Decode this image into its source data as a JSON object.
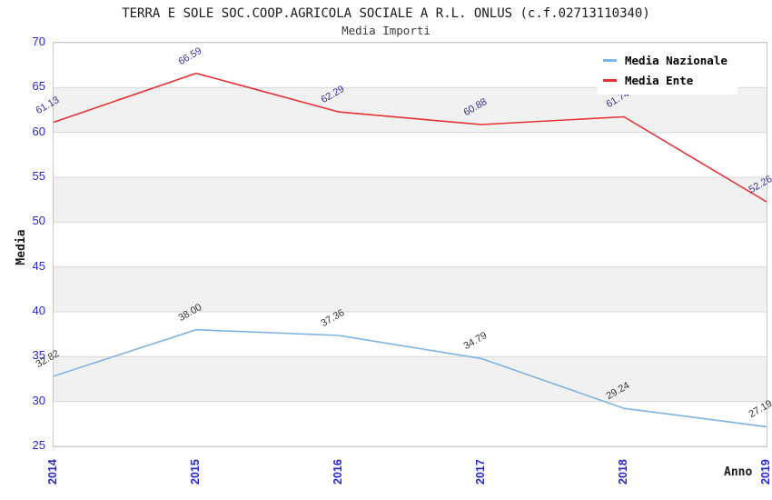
{
  "chart_data": {
    "type": "line",
    "title": "TERRA E SOLE SOC.COOP.AGRICOLA SOCIALE A R.L. ONLUS (c.f.02713110340)",
    "subtitle": "Media Importi",
    "xlabel": "Anno",
    "ylabel": "Media",
    "categories": [
      "2014",
      "2015",
      "2016",
      "2017",
      "2018",
      "2019"
    ],
    "series": [
      {
        "name": "Media Nazionale",
        "values": [
          32.82,
          38.0,
          37.36,
          34.79,
          29.24,
          27.19
        ],
        "color": "#7db3e3",
        "label_color": "#373737"
      },
      {
        "name": "Media Ente",
        "values": [
          61.13,
          66.59,
          62.29,
          60.88,
          61.74,
          52.26
        ],
        "color": "#e63232",
        "label_color": "#34349c"
      }
    ],
    "ylim": [
      25,
      70
    ],
    "y_ticks": [
      70,
      65,
      60,
      55,
      50,
      45,
      40,
      35,
      30,
      25
    ],
    "grid": true,
    "legend_position": "top-right",
    "band_color": "#f1f1f1",
    "grid_color": "#d8d8d8",
    "border_color": "#c8c8c8",
    "axis_text_color": "#2727cd"
  }
}
